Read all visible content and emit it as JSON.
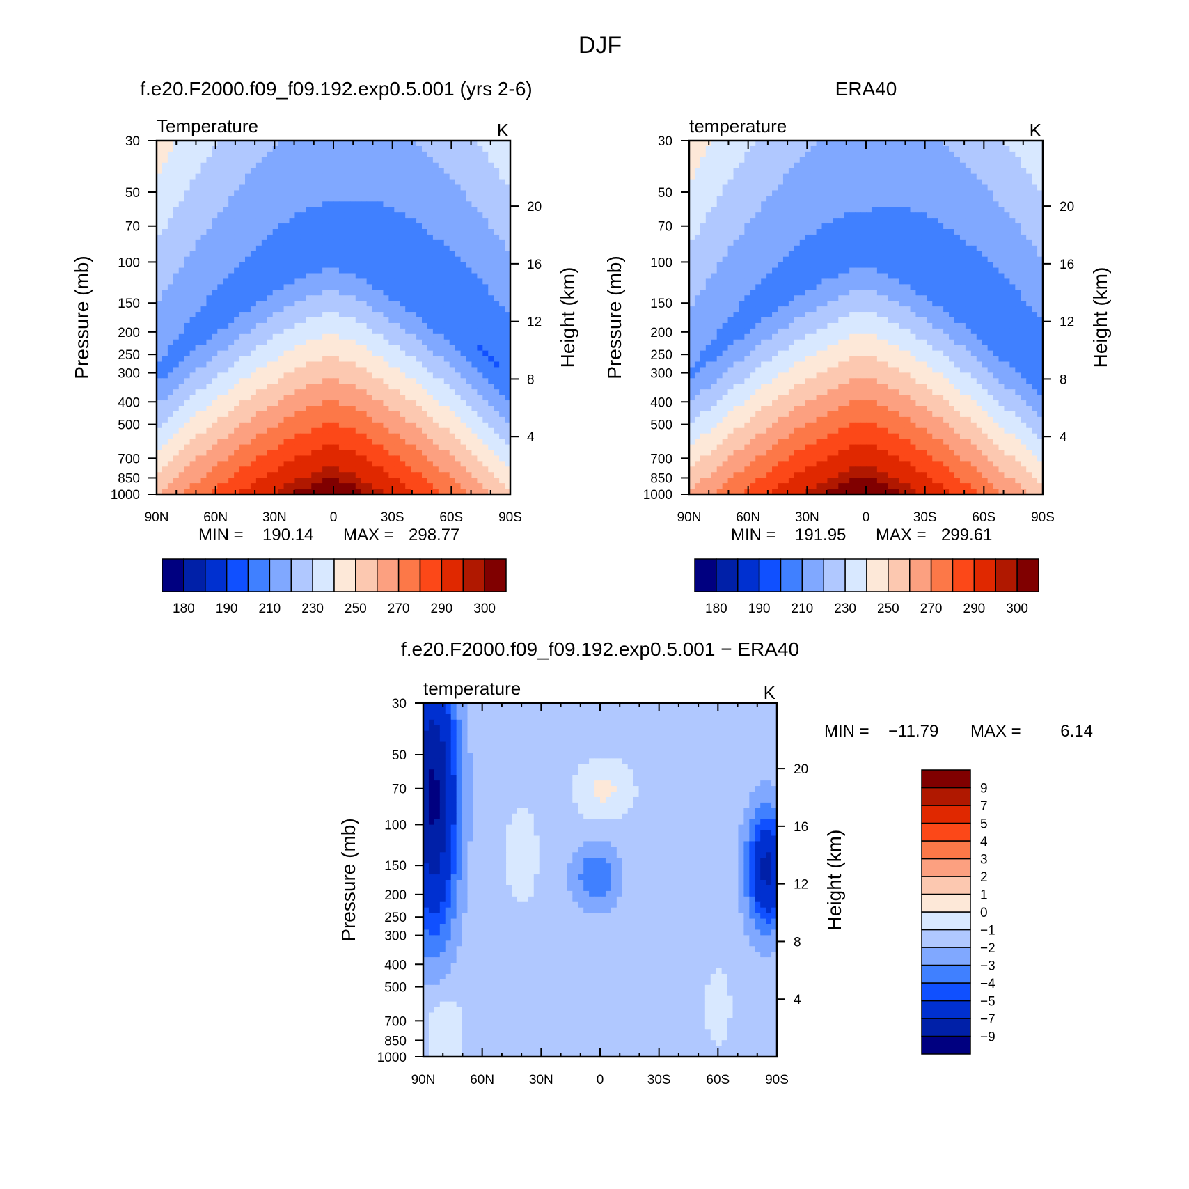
{
  "figure_title": "DJF",
  "colors": {
    "abs": [
      "#000080",
      "#0020a8",
      "#0030d0",
      "#1050ff",
      "#4080ff",
      "#80a8ff",
      "#b0c8ff",
      "#d8e8ff",
      "#fde8d8",
      "#fcc8b0",
      "#fca080",
      "#fc7848",
      "#fc4818",
      "#e02800",
      "#b01800",
      "#800000"
    ],
    "diff": [
      "#000080",
      "#0020a8",
      "#0030d0",
      "#1050ff",
      "#4080ff",
      "#80a8ff",
      "#b0c8ff",
      "#d8e8ff",
      "#fde8d8",
      "#fcc8b0",
      "#fca080",
      "#fc7848",
      "#fc4818",
      "#e02800",
      "#b01800",
      "#800000"
    ]
  },
  "chart_data": [
    {
      "type": "heatmap",
      "panel": "model",
      "title": "f.e20.F2000.f09_f09.192.exp0.5.001 (yrs 2-6)",
      "left_label": "Temperature",
      "unit_label": "K",
      "ylabel": "Pressure (mb)",
      "y2label": "Height (km)",
      "x_ticks": [
        "90N",
        "60N",
        "30N",
        "0",
        "30S",
        "60S",
        "90S"
      ],
      "y_ticks": [
        30,
        50,
        70,
        100,
        150,
        200,
        250,
        300,
        400,
        500,
        700,
        850,
        1000
      ],
      "y2_ticks": [
        20,
        16,
        12,
        8,
        4
      ],
      "ylim": [
        1000,
        30
      ],
      "y_scale": "log",
      "stats": {
        "min_label": "MIN =",
        "min": "190.14",
        "max_label": "MAX =",
        "max": "298.77"
      },
      "colorbar_labels": [
        "180",
        "190",
        "210",
        "230",
        "250",
        "270",
        "290",
        "300"
      ]
    },
    {
      "type": "heatmap",
      "panel": "obs",
      "title": "ERA40",
      "left_label": "temperature",
      "unit_label": "K",
      "ylabel": "Pressure (mb)",
      "y2label": "Height (km)",
      "x_ticks": [
        "90N",
        "60N",
        "30N",
        "0",
        "30S",
        "60S",
        "90S"
      ],
      "y_ticks": [
        30,
        50,
        70,
        100,
        150,
        200,
        250,
        300,
        400,
        500,
        700,
        850,
        1000
      ],
      "y2_ticks": [
        20,
        16,
        12,
        8,
        4
      ],
      "ylim": [
        1000,
        30
      ],
      "y_scale": "log",
      "stats": {
        "min_label": "MIN =",
        "min": "191.95",
        "max_label": "MAX =",
        "max": "299.61"
      },
      "colorbar_labels": [
        "180",
        "190",
        "210",
        "230",
        "250",
        "270",
        "290",
        "300"
      ]
    },
    {
      "type": "heatmap",
      "panel": "diff",
      "title": "f.e20.F2000.f09_f09.192.exp0.5.001 − ERA40",
      "left_label": "temperature",
      "unit_label": "K",
      "ylabel": "Pressure (mb)",
      "y2label": "Height (km)",
      "x_ticks": [
        "90N",
        "60N",
        "30N",
        "0",
        "30S",
        "60S",
        "90S"
      ],
      "y_ticks": [
        30,
        50,
        70,
        100,
        150,
        200,
        250,
        300,
        400,
        500,
        700,
        850,
        1000
      ],
      "y2_ticks": [
        20,
        16,
        12,
        8,
        4
      ],
      "ylim": [
        1000,
        30
      ],
      "y_scale": "log",
      "stats": {
        "min_label": "MIN =",
        "min": "−11.79",
        "max_label": "MAX =",
        "max": "6.14"
      },
      "colorbar_labels": [
        "9",
        "7",
        "5",
        "4",
        "3",
        "2",
        "1",
        "0",
        "−1",
        "−2",
        "−3",
        "−4",
        "−5",
        "−7",
        "−9"
      ]
    }
  ]
}
